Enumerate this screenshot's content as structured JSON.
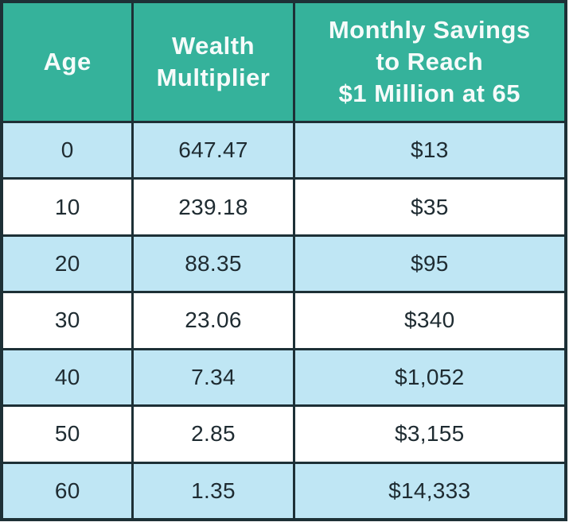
{
  "title": "Wealth multiplier savings table",
  "colors": {
    "header_background": "#35b29b",
    "header_text": "#f6fbfa",
    "row_alt_blue": "#bfe6f4",
    "row_white": "#ffffff",
    "grid_border": "#1d3036",
    "body_text": "#1e2b31"
  },
  "header": {
    "age": "Age",
    "wealth_line1": "Wealth",
    "wealth_line2": "Multiplier",
    "savings_line1": "Monthly Savings",
    "savings_line2": "to Reach",
    "savings_line3": "$1 Million at 65"
  },
  "table": {
    "rows": [
      {
        "age": "0",
        "multiplier": "647.47",
        "savings": "$13"
      },
      {
        "age": "10",
        "multiplier": "239.18",
        "savings": "$35"
      },
      {
        "age": "20",
        "multiplier": "88.35",
        "savings": "$95"
      },
      {
        "age": "30",
        "multiplier": "23.06",
        "savings": "$340"
      },
      {
        "age": "40",
        "multiplier": "7.34",
        "savings": "$1,052"
      },
      {
        "age": "50",
        "multiplier": "2.85",
        "savings": "$3,155"
      },
      {
        "age": "60",
        "multiplier": "1.35",
        "savings": "$14,333"
      }
    ]
  },
  "chart_data": {
    "type": "table",
    "columns": [
      "Age",
      "Wealth Multiplier",
      "Monthly Savings to Reach $1 Million at 65"
    ],
    "rows": [
      [
        0,
        647.47,
        "$13"
      ],
      [
        10,
        239.18,
        "$35"
      ],
      [
        20,
        88.35,
        "$95"
      ],
      [
        30,
        23.06,
        "$340"
      ],
      [
        40,
        7.34,
        "$1,052"
      ],
      [
        50,
        2.85,
        "$3,155"
      ],
      [
        60,
        1.35,
        "$14,333"
      ]
    ],
    "notes": "Alternating light-blue/white striped rows starting blue at age 0; teal header band"
  }
}
